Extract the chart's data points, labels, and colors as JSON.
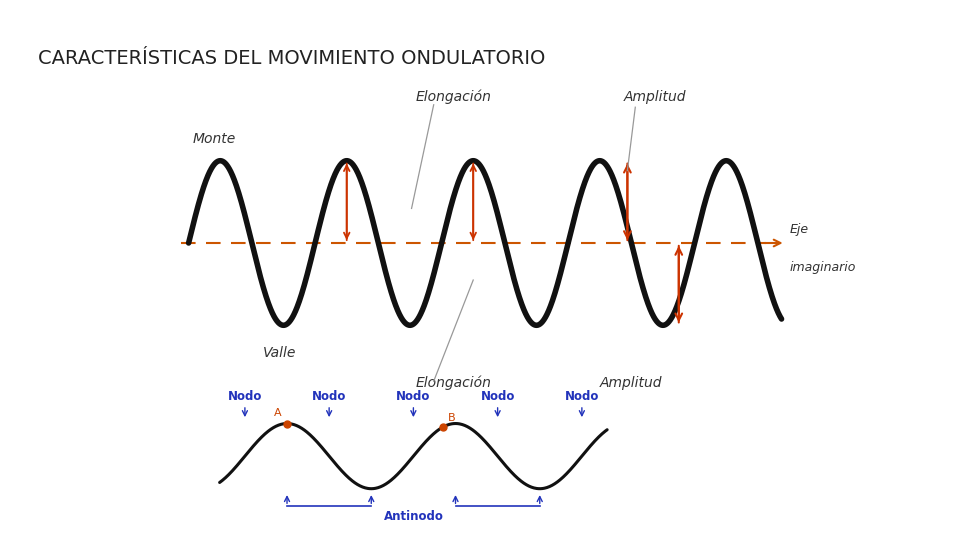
{
  "title": "CARACTERÍSTICAS DEL MOVIMIENTO ONDULATORIO",
  "title_fontsize": 14,
  "title_color": "#222222",
  "background_color": "#ffffff",
  "upper_panel": {
    "bg_color": "#dcdce4",
    "wave_color": "#111111",
    "wave_lw": 4.0,
    "dashed_color": "#cc5500",
    "dashed_lw": 1.5,
    "arrow_color": "#cc3300",
    "label_color": "#333333",
    "label_fontsize": 10,
    "label_style": "italic"
  },
  "lower_panel": {
    "border_color": "#bb0000",
    "border_lw": 2.5,
    "bg_color": "#ffffff",
    "wave_color": "#111111",
    "wave_lw": 2.2,
    "label_color": "#2233bb",
    "label_fontsize": 8.5,
    "node_dot_color": "#cc4400",
    "antinodo_label": "Antinodo",
    "nodo_label": "Nodo"
  }
}
